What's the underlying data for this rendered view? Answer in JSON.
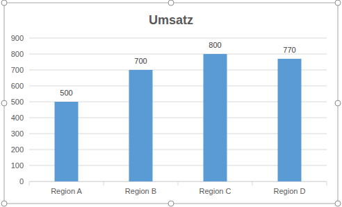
{
  "chart_data": {
    "type": "bar",
    "title": "Umsatz",
    "categories": [
      "Region A",
      "Region B",
      "Region C",
      "Region D"
    ],
    "values": [
      500,
      700,
      800,
      770
    ],
    "color": "#5b9bd5",
    "ylim": [
      0,
      900
    ],
    "yticks": [
      0,
      100,
      200,
      300,
      400,
      500,
      600,
      700,
      800,
      900
    ],
    "grid": true,
    "data_labels": true
  }
}
